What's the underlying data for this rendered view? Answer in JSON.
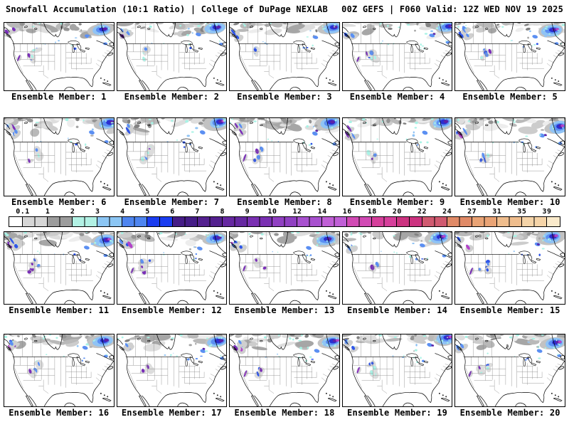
{
  "header": {
    "left": "Snowfall Accumulation (10:1 Ratio) | College of DuPage NEXLAB",
    "right": "00Z GEFS | F060 Valid: 12Z WED NOV 19 2025"
  },
  "panels": [
    {
      "label": "Ensemble Member: 1"
    },
    {
      "label": "Ensemble Member: 2"
    },
    {
      "label": "Ensemble Member: 3"
    },
    {
      "label": "Ensemble Member: 4"
    },
    {
      "label": "Ensemble Member: 5"
    },
    {
      "label": "Ensemble Member: 6"
    },
    {
      "label": "Ensemble Member: 7"
    },
    {
      "label": "Ensemble Member: 8"
    },
    {
      "label": "Ensemble Member: 9"
    },
    {
      "label": "Ensemble Member: 10"
    },
    {
      "label": "Ensemble Member: 11"
    },
    {
      "label": "Ensemble Member: 12"
    },
    {
      "label": "Ensemble Member: 13"
    },
    {
      "label": "Ensemble Member: 14"
    },
    {
      "label": "Ensemble Member: 15"
    },
    {
      "label": "Ensemble Member: 16"
    },
    {
      "label": "Ensemble Member: 17"
    },
    {
      "label": "Ensemble Member: 18"
    },
    {
      "label": "Ensemble Member: 19"
    },
    {
      "label": "Ensemble Member: 20"
    }
  ],
  "colorbar": {
    "tick_labels": [
      "0.1",
      "1",
      "2",
      "3",
      "4",
      "5",
      "6",
      "7",
      "8",
      "9",
      "10",
      "12",
      "14",
      "16",
      "18",
      "20",
      "22",
      "24",
      "27",
      "31",
      "35",
      "39"
    ],
    "cell_colors": [
      "#ffffff",
      "#d6d6d6",
      "#9c9c9c",
      "#b2f1e4",
      "#8cc6f4",
      "#4e85f0",
      "#1b3df0",
      "#451c86",
      "#54218f",
      "#6628a1",
      "#7a30b2",
      "#9040c2",
      "#a851cf",
      "#c05fd6",
      "#d14ab4",
      "#d63f9b",
      "#cc3380",
      "#d05a70",
      "#e08a67",
      "#e9a375",
      "#efbd8d",
      "#f5d4a8",
      "#faeacb"
    ]
  },
  "snow_shading_colors": {
    "light_snow_grays": [
      "#ededed",
      "#dedede",
      "#cccccc",
      "#b9b9b9",
      "#a6a6a6",
      "#949494"
    ],
    "trace_cyan": "#a9f3e6",
    "moderate_blues": [
      "#8fc3f5",
      "#5b8ff2",
      "#2f55e8",
      "#2a2fd0"
    ],
    "heavy_purples": [
      "#5a22a8",
      "#7a2fb8"
    ],
    "extreme_magenta": "#b344c8"
  }
}
